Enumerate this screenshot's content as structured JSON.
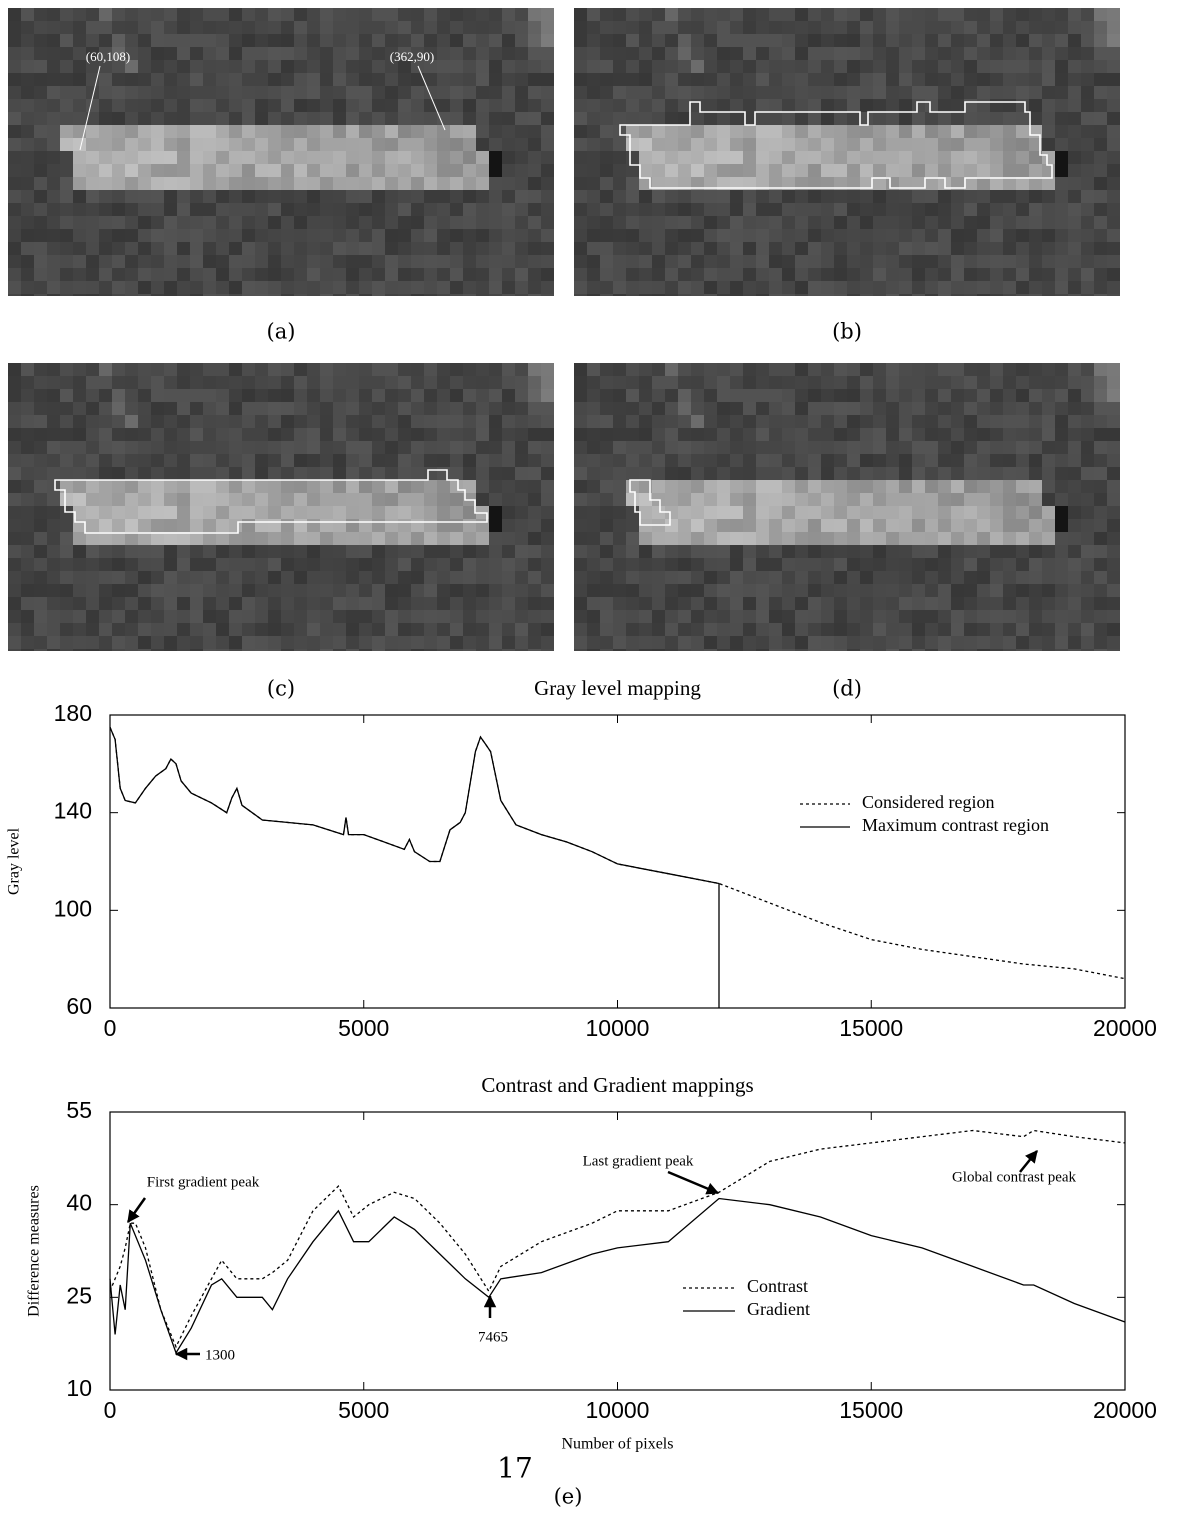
{
  "figure": {
    "panels": [
      {
        "label": "(a)",
        "annotations": [
          "(60,108)",
          "(362,90)"
        ]
      },
      {
        "label": "(b)"
      },
      {
        "label": "(c)"
      },
      {
        "label": "(d)"
      }
    ],
    "caption": "(e)"
  },
  "page_number": "17",
  "chart_data": [
    {
      "type": "line",
      "title": "Gray level mapping",
      "y_label": "Gray level",
      "x": [
        0,
        100,
        200,
        300,
        500,
        700,
        900,
        1100,
        1200,
        1300,
        1400,
        1600,
        2000,
        2300,
        2400,
        2500,
        2600,
        3000,
        4000,
        4600,
        4650,
        4700,
        5000,
        5800,
        5900,
        6000,
        6300,
        6500,
        6700,
        6900,
        7000,
        7200,
        7300,
        7400,
        7500,
        7700,
        8000,
        8500,
        9000,
        9500,
        10000,
        11000,
        12000,
        12000,
        13000,
        14000,
        15000,
        16000,
        17000,
        18000,
        19000,
        20000
      ],
      "series": [
        {
          "name": "Considered region",
          "color": "#000",
          "style": "dotted",
          "values": [
            175,
            170,
            150,
            145,
            144,
            150,
            155,
            158,
            162,
            160,
            153,
            148,
            144,
            140,
            146,
            150,
            143,
            137,
            135,
            131,
            138,
            131,
            131,
            125,
            129,
            124,
            120,
            120,
            133,
            136,
            140,
            165,
            171,
            168,
            165,
            145,
            135,
            131,
            128,
            124,
            119,
            115,
            111,
            111,
            103,
            95,
            88,
            84,
            81,
            78,
            76,
            72
          ]
        },
        {
          "name": "Maximum contrast region",
          "color": "#000",
          "style": "solid",
          "values": [
            175,
            170,
            150,
            145,
            144,
            150,
            155,
            158,
            162,
            160,
            153,
            148,
            144,
            140,
            146,
            150,
            143,
            137,
            135,
            131,
            138,
            131,
            131,
            125,
            129,
            124,
            120,
            120,
            133,
            136,
            140,
            165,
            171,
            168,
            165,
            145,
            135,
            131,
            128,
            124,
            119,
            115,
            111,
            60,
            null,
            null,
            null,
            null,
            null,
            null,
            null,
            null
          ]
        }
      ],
      "xlim": [
        0,
        20000
      ],
      "xticks": [
        0,
        5000,
        10000,
        15000,
        20000
      ],
      "ylim": [
        60,
        180
      ],
      "yticks": [
        60,
        100,
        140,
        180
      ]
    },
    {
      "type": "line",
      "title": "Contrast and Gradient mappings",
      "x_label": "Number of pixels",
      "y_label": "Difference measures",
      "x": [
        0,
        100,
        200,
        300,
        400,
        500,
        700,
        1000,
        1300,
        1600,
        2000,
        2200,
        2500,
        3000,
        3200,
        3500,
        4000,
        4500,
        4800,
        5100,
        5600,
        6000,
        6500,
        7000,
        7465,
        7700,
        8500,
        9500,
        10000,
        11000,
        12000,
        13000,
        14000,
        15000,
        16000,
        17000,
        18000,
        18200,
        19000,
        20000
      ],
      "series": [
        {
          "name": "Contrast",
          "color": "#000",
          "style": "dotted",
          "values": [
            26,
            28,
            30,
            33,
            37,
            37,
            33,
            23,
            17,
            22,
            28,
            31,
            28,
            28,
            29,
            31,
            39,
            43,
            38,
            40,
            42,
            41,
            37,
            32,
            26,
            30,
            34,
            37,
            39,
            39,
            42,
            47,
            49,
            50,
            51,
            52,
            51,
            52,
            51,
            50
          ]
        },
        {
          "name": "Gradient",
          "color": "#000",
          "style": "solid",
          "values": [
            28,
            19,
            27,
            23,
            37,
            35,
            31,
            23,
            16,
            20,
            27,
            28,
            25,
            25,
            23,
            28,
            34,
            39,
            34,
            34,
            38,
            36,
            32,
            28,
            25,
            28,
            29,
            32,
            33,
            34,
            41,
            40,
            38,
            35,
            33,
            30,
            27,
            27,
            24,
            21
          ]
        }
      ],
      "annotations": [
        "First gradient peak",
        "1300",
        "7465",
        "Last gradient peak",
        "Global contrast peak"
      ],
      "xlim": [
        0,
        20000
      ],
      "xticks": [
        0,
        5000,
        10000,
        15000,
        20000
      ],
      "ylim": [
        10,
        55
      ],
      "yticks": [
        10,
        25,
        40,
        55
      ]
    }
  ]
}
